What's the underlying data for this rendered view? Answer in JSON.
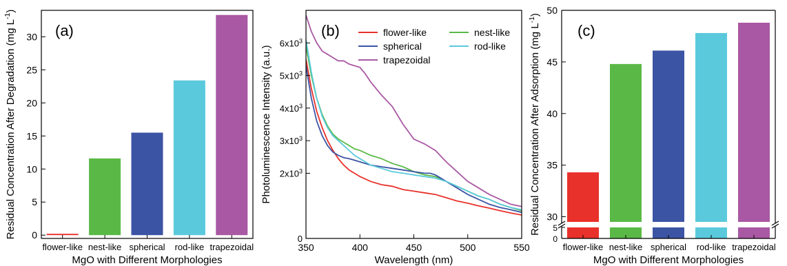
{
  "chart_data": [
    {
      "type": "bar",
      "panel_label": "(a)",
      "xlabel": "MgO with Different Morphologies",
      "ylabel": "Residual Concentration After Degradation (mg L",
      "ylabel_unit_sup": "-1",
      "ylabel_unit_close": ")",
      "categories": [
        "flower-like",
        "nest-like",
        "spherical",
        "rod-like",
        "trapezoidal"
      ],
      "values": [
        0.2,
        11.6,
        15.5,
        23.4,
        33.3
      ],
      "colors": [
        "#e8312a",
        "#5ab946",
        "#3c54a4",
        "#5ac9dc",
        "#a958a3"
      ],
      "ylim": [
        -0.5,
        34
      ],
      "yticks": [
        0,
        5,
        10,
        15,
        20,
        25,
        30
      ],
      "grid": false
    },
    {
      "type": "line",
      "panel_label": "(b)",
      "xlabel": "Wavelength (nm)",
      "ylabel": "Photoluminescence Intensity (a.u.)",
      "xlim": [
        350,
        550
      ],
      "ylim": [
        0,
        7000
      ],
      "xticks": [
        350,
        400,
        450,
        500,
        550
      ],
      "yticks": [
        {
          "value": 0,
          "base": "0",
          "exp": ""
        },
        {
          "value": 2000,
          "base": "2x10",
          "exp": "3"
        },
        {
          "value": 3000,
          "base": "3x10",
          "exp": "3"
        },
        {
          "value": 4000,
          "base": "4x10",
          "exp": "3"
        },
        {
          "value": 5000,
          "base": "5x10",
          "exp": "3"
        },
        {
          "value": 6000,
          "base": "6x10",
          "exp": "3"
        }
      ],
      "legend_position": "top-right",
      "grid": false,
      "series": [
        {
          "name": "flower-like",
          "color": "#e8312a",
          "x": [
            350,
            355,
            360,
            365,
            370,
            375,
            380,
            385,
            390,
            395,
            400,
            410,
            420,
            430,
            440,
            450,
            460,
            470,
            480,
            490,
            500,
            510,
            520,
            530,
            540,
            550
          ],
          "y": [
            5500,
            4600,
            3900,
            3400,
            3000,
            2700,
            2450,
            2250,
            2100,
            2000,
            1900,
            1750,
            1650,
            1600,
            1500,
            1450,
            1400,
            1350,
            1250,
            1150,
            1080,
            1000,
            930,
            850,
            780,
            720
          ]
        },
        {
          "name": "nest-like",
          "color": "#5ab946",
          "x": [
            350,
            355,
            360,
            365,
            370,
            375,
            380,
            385,
            390,
            395,
            400,
            410,
            420,
            430,
            440,
            450,
            460,
            470,
            480,
            490,
            500,
            510,
            520,
            530,
            540,
            550
          ],
          "y": [
            5900,
            5000,
            4300,
            3800,
            3450,
            3200,
            3050,
            2950,
            2850,
            2750,
            2700,
            2550,
            2450,
            2300,
            2200,
            2050,
            1950,
            1900,
            1750,
            1600,
            1450,
            1300,
            1200,
            1050,
            950,
            850
          ]
        },
        {
          "name": "spherical",
          "color": "#3c54a4",
          "x": [
            350,
            355,
            360,
            365,
            370,
            375,
            380,
            385,
            390,
            395,
            400,
            410,
            420,
            430,
            440,
            450,
            460,
            465,
            470,
            480,
            490,
            500,
            510,
            520,
            530,
            540,
            550
          ],
          "y": [
            5300,
            4300,
            3600,
            3150,
            2850,
            2650,
            2550,
            2480,
            2450,
            2400,
            2350,
            2250,
            2200,
            2150,
            2100,
            2050,
            2000,
            2000,
            1950,
            1750,
            1550,
            1350,
            1200,
            1050,
            950,
            880,
            800
          ]
        },
        {
          "name": "rod-like",
          "color": "#5ac9dc",
          "x": [
            350,
            355,
            360,
            365,
            370,
            375,
            380,
            385,
            390,
            395,
            400,
            410,
            420,
            430,
            440,
            450,
            460,
            470,
            480,
            490,
            500,
            510,
            520,
            530,
            540,
            550
          ],
          "y": [
            6100,
            5100,
            4300,
            3750,
            3400,
            3150,
            3000,
            2850,
            2700,
            2550,
            2450,
            2250,
            2150,
            2050,
            2000,
            1950,
            1900,
            1850,
            1750,
            1600,
            1450,
            1300,
            1200,
            1050,
            950,
            880
          ]
        },
        {
          "name": "trapezoidal",
          "color": "#a958a3",
          "x": [
            350,
            355,
            360,
            365,
            370,
            375,
            380,
            385,
            390,
            395,
            400,
            405,
            410,
            420,
            430,
            440,
            450,
            460,
            470,
            480,
            490,
            500,
            510,
            520,
            530,
            540,
            550
          ],
          "y": [
            6850,
            6350,
            6000,
            5750,
            5650,
            5550,
            5450,
            5450,
            5350,
            5300,
            5250,
            5050,
            4800,
            4400,
            4050,
            3500,
            3050,
            2900,
            2700,
            2350,
            2050,
            1750,
            1550,
            1350,
            1200,
            1050,
            980
          ]
        }
      ]
    },
    {
      "type": "bar",
      "panel_label": "(c)",
      "xlabel": "MgO with Different Morphologies",
      "ylabel": "Residual Concentration After Adsorption (mg L",
      "ylabel_unit_sup": "-1",
      "ylabel_unit_close": ")",
      "categories": [
        "flower-like",
        "nest-like",
        "spherical",
        "rod-like",
        "trapezoidal"
      ],
      "values": [
        34.3,
        44.8,
        46.1,
        47.8,
        48.8
      ],
      "colors": [
        "#e8312a",
        "#5ab946",
        "#3c54a4",
        "#5ac9dc",
        "#a958a3"
      ],
      "axis_break": {
        "lower_range": [
          0,
          5
        ],
        "upper_range": [
          29.5,
          50
        ]
      },
      "yticks_lower": [
        0,
        5
      ],
      "yticks_upper": [
        30,
        35,
        40,
        45,
        50
      ],
      "grid": false
    }
  ]
}
